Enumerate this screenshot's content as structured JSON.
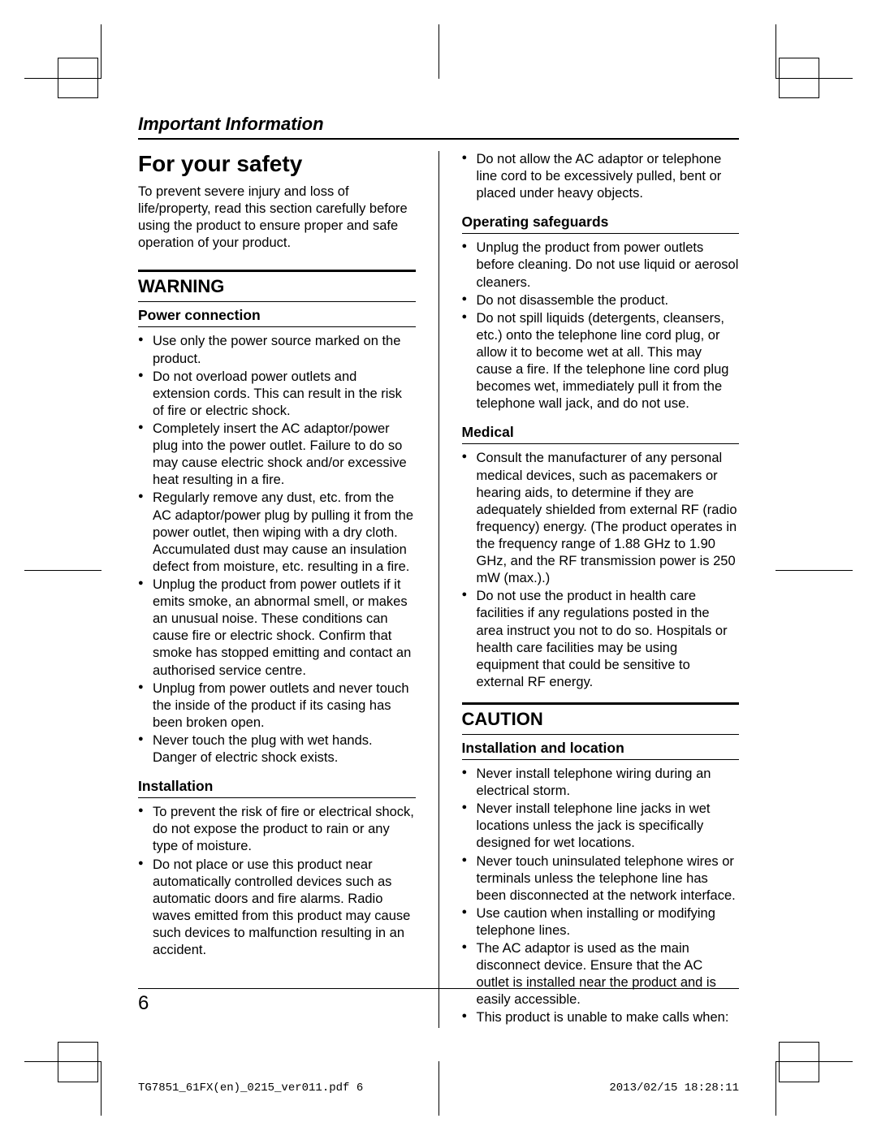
{
  "section_header": "Important Information",
  "main_heading": "For your safety",
  "intro_text": "To prevent severe injury and loss of life/property, read this section carefully before using the product to ensure proper and safe operation of your product.",
  "warning_heading": "WARNING",
  "power_connection_heading": "Power connection",
  "power_connection_items": [
    "Use only the power source marked on the product.",
    "Do not overload power outlets and extension cords. This can result in the risk of fire or electric shock.",
    "Completely insert the AC adaptor/power plug into the power outlet. Failure to do so may cause electric shock and/or excessive heat resulting in a fire.",
    "Regularly remove any dust, etc. from the AC adaptor/power plug by pulling it from the power outlet, then wiping with a dry cloth. Accumulated dust may cause an insulation defect from moisture, etc. resulting in a fire.",
    "Unplug the product from power outlets if it emits smoke, an abnormal smell, or makes an unusual noise. These conditions can cause fire or electric shock. Confirm that smoke has stopped emitting and contact an authorised service centre.",
    "Unplug from power outlets and never touch the inside of the product if its casing has been broken open.",
    "Never touch the plug with wet hands. Danger of electric shock exists."
  ],
  "installation_heading": "Installation",
  "installation_items": [
    "To prevent the risk of fire or electrical shock, do not expose the product to rain or any type of moisture.",
    "Do not place or use this product near automatically controlled devices such as automatic doors and fire alarms. Radio waves emitted from this product may cause such devices to malfunction resulting in an accident."
  ],
  "col2_lead_items": [
    "Do not allow the AC adaptor or telephone line cord to be excessively pulled, bent or placed under heavy objects."
  ],
  "operating_safeguards_heading": "Operating safeguards",
  "operating_safeguards_items": [
    "Unplug the product from power outlets before cleaning. Do not use liquid or aerosol cleaners.",
    "Do not disassemble the product.",
    "Do not spill liquids (detergents, cleansers, etc.) onto the telephone line cord plug, or allow it to become wet at all. This may cause a fire. If the telephone line cord plug becomes wet, immediately pull it from the telephone wall jack, and do not use."
  ],
  "medical_heading": "Medical",
  "medical_items": [
    "Consult the manufacturer of any personal medical devices, such as pacemakers or hearing aids, to determine if they are adequately shielded from external RF (radio frequency) energy. (The product operates in the frequency range of 1.88 GHz to 1.90 GHz, and the RF transmission power is 250 mW (max.).)",
    "Do not use the product in health care facilities if any regulations posted in the area instruct you not to do so. Hospitals or health care facilities may be using equipment that could be sensitive to external RF energy."
  ],
  "caution_heading": "CAUTION",
  "installation_location_heading": "Installation and location",
  "installation_location_items": [
    "Never install telephone wiring during an electrical storm.",
    "Never install telephone line jacks in wet locations unless the jack is specifically designed for wet locations.",
    "Never touch uninsulated telephone wires or terminals unless the telephone line has been disconnected at the network interface.",
    "Use caution when installing or modifying telephone lines.",
    "The AC adaptor is used as the main disconnect device. Ensure that the AC outlet is installed near the product and is easily accessible.",
    "This product is unable to make calls when:"
  ],
  "page_number": "6",
  "footer_left": "TG7851_61FX(en)_0215_ver011.pdf   6",
  "footer_right": "2013/02/15   18:28:11"
}
